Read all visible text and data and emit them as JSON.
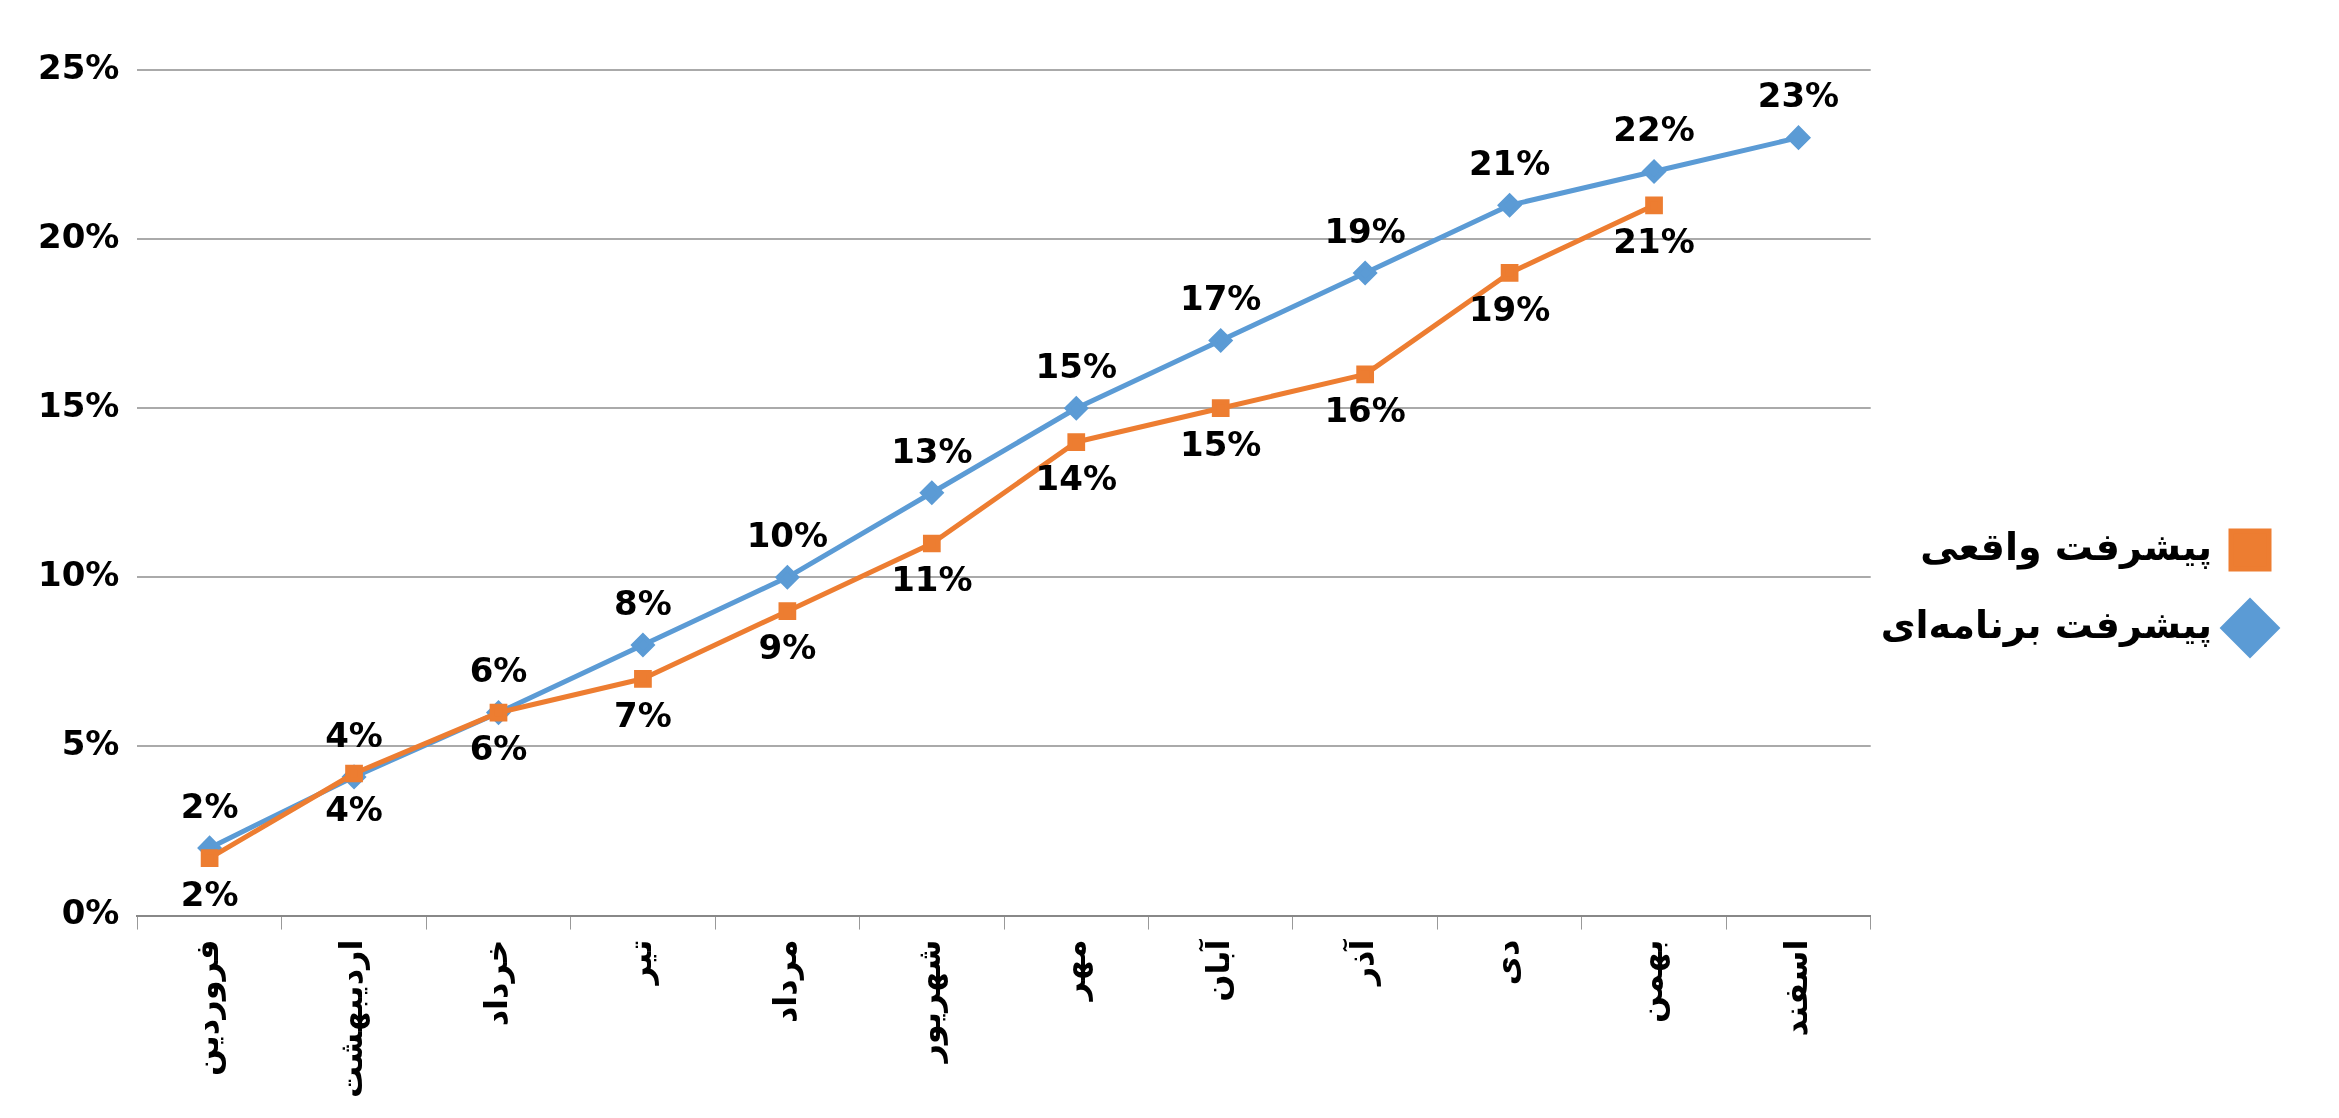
{
  "chart_data": {
    "type": "line",
    "categories": [
      "فروردین",
      "اردیبهشت",
      "خرداد",
      "تیر",
      "مرداد",
      "شهریور",
      "مهر",
      "آبان",
      "آذر",
      "دی",
      "بهمن",
      "اسفند"
    ],
    "series": [
      {
        "name": "پیشرفت برنامه‌ای",
        "color": "#5b9bd5",
        "marker": "diamond",
        "values": [
          2,
          4.1,
          6,
          8,
          10,
          12.5,
          15,
          17,
          19,
          21,
          22,
          23
        ],
        "value_labels": [
          "2%",
          "4%",
          "6%",
          "8%",
          "10%",
          "13%",
          "15%",
          "17%",
          "19%",
          "21%",
          "22%",
          "23%"
        ]
      },
      {
        "name": "پیشرفت واقعی",
        "color": "#ed7d31",
        "marker": "square",
        "values": [
          1.7,
          4.2,
          6,
          7,
          9,
          11,
          14,
          15,
          16,
          19,
          21,
          null
        ],
        "value_labels": [
          "2%",
          "4%",
          "6%",
          "7%",
          "9%",
          "11%",
          "14%",
          "15%",
          "16%",
          "19%",
          "21%",
          null
        ]
      }
    ],
    "ylim": [
      0,
      25
    ],
    "yticks": [
      {
        "value": 0,
        "label": "0%"
      },
      {
        "value": 5,
        "label": "5%"
      },
      {
        "value": 10,
        "label": "10%"
      },
      {
        "value": 15,
        "label": "15%"
      },
      {
        "value": 20,
        "label": "20%"
      },
      {
        "value": 25,
        "label": "25%"
      }
    ],
    "grid": "y",
    "legend": "right",
    "line_style": "solid"
  }
}
